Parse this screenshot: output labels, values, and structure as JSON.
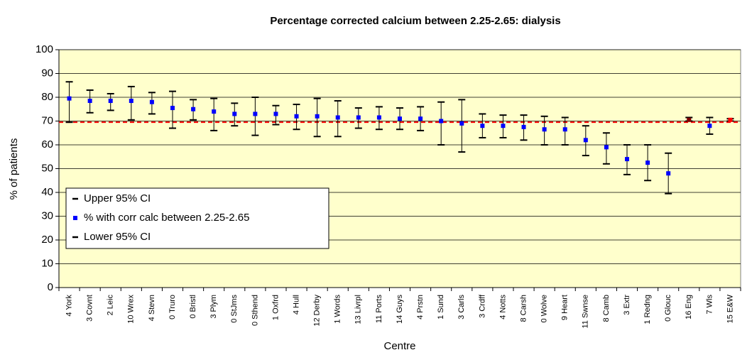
{
  "chart_data": {
    "type": "errorbar",
    "title": "Percentage corrected calcium between 2.25-2.65:  dialysis",
    "x_label": "Centre",
    "y_label": "% of patients",
    "categories": [
      "4 York",
      "3 Covnt",
      "2 Leic",
      "10 Wrex",
      "4 Stevn",
      "0 Truro",
      "0 Bristl",
      "3 Plym",
      "0 StJms",
      "0 Sthend",
      "1 Oxfrd",
      "4 Hull",
      "12 Derby",
      "1 Words",
      "13 Livrpl",
      "11 Ports",
      "14 Guys",
      "4 Prstn",
      "1 Sund",
      "3 Carls",
      "3 Crdff",
      "4 Notts",
      "8 Carsh",
      "0 Wolve",
      "9 Heart",
      "11 Swnse",
      "8 Camb",
      "3 Extr",
      "1 Redng",
      "0 Glouc",
      "16 Eng",
      "7 Wls",
      "15 E&W"
    ],
    "series": [
      {
        "name": "Upper 95% CI",
        "color": "#000000",
        "values": [
          86.5,
          83,
          81.5,
          84.5,
          82,
          82.5,
          79,
          79.5,
          77.5,
          80,
          76.5,
          77,
          79.5,
          78.5,
          75.5,
          76,
          75.5,
          76,
          78,
          79,
          73,
          72.5,
          72.5,
          72,
          71.5,
          68,
          65,
          60,
          60,
          56.5,
          71.5,
          71.5,
          71
        ]
      },
      {
        "name": "% with corr calc between 2.25-2.65",
        "color": "#0000ff",
        "values": [
          79.5,
          78.5,
          78.5,
          78.5,
          78,
          75.5,
          75,
          74,
          73,
          73,
          73,
          72,
          72,
          71.5,
          71.5,
          71.5,
          71,
          71,
          70,
          69,
          68,
          68,
          67.5,
          66.5,
          66.5,
          62,
          59,
          54,
          52.5,
          48,
          70.5,
          68,
          70.5
        ],
        "point_colors": [
          "#0000ff",
          "#0000ff",
          "#0000ff",
          "#0000ff",
          "#0000ff",
          "#0000ff",
          "#0000ff",
          "#0000ff",
          "#0000ff",
          "#0000ff",
          "#0000ff",
          "#0000ff",
          "#0000ff",
          "#0000ff",
          "#0000ff",
          "#0000ff",
          "#0000ff",
          "#0000ff",
          "#0000ff",
          "#0000ff",
          "#0000ff",
          "#0000ff",
          "#0000ff",
          "#0000ff",
          "#0000ff",
          "#0000ff",
          "#0000ff",
          "#0000ff",
          "#0000ff",
          "#0000ff",
          "#800000",
          "#0000ff",
          "#ff0000"
        ]
      },
      {
        "name": "Lower 95% CI",
        "color": "#000000",
        "values": [
          69.5,
          73.5,
          74.5,
          70.5,
          73,
          67,
          70.5,
          66,
          68,
          64,
          68.5,
          66.5,
          63.5,
          63.5,
          67,
          66.5,
          66.5,
          66,
          60,
          57,
          63,
          63,
          62,
          60,
          60,
          55.5,
          52,
          47.5,
          45,
          39.5,
          70,
          64.5,
          70
        ]
      }
    ],
    "reference_line": {
      "value": 69.5,
      "color": "#ff0000"
    },
    "ylim": [
      0,
      100
    ],
    "yticks": [
      0,
      10,
      20,
      30,
      40,
      50,
      60,
      70,
      80,
      90,
      100
    ],
    "grid": true,
    "plot_background": "#ffffcc",
    "legend": "lower-left"
  }
}
